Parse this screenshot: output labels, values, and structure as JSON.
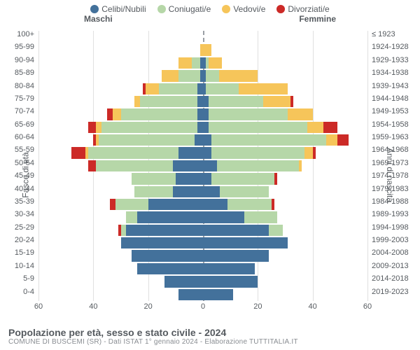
{
  "legend": [
    {
      "label": "Celibi/Nubili",
      "color": "#43719b"
    },
    {
      "label": "Coniugati/e",
      "color": "#b6d7a8"
    },
    {
      "label": "Vedovi/e",
      "color": "#f6c55a"
    },
    {
      "label": "Divorziati/e",
      "color": "#cc2a27"
    }
  ],
  "colors": {
    "celibi": "#43719b",
    "coniugati": "#b6d7a8",
    "vedovi": "#f6c55a",
    "divorziati": "#cc2a27",
    "grid": "#e0e0e0",
    "center": "#9a9fa5",
    "text": "#555a5f",
    "subtext": "#888c91",
    "background": "#ffffff"
  },
  "titles": {
    "maschi": "Maschi",
    "femmine": "Femmine",
    "y_left": "Fasce di età",
    "y_right": "Anni di nascita"
  },
  "axis": {
    "xlim": 60,
    "ticks": [
      60,
      40,
      20,
      0,
      20,
      40,
      60
    ],
    "label_fontsize": 11
  },
  "fontsize": {
    "legend": 12,
    "titles": 12,
    "axis_labels": 11,
    "row_labels": 11,
    "footer_title": 14,
    "footer_sub": 10
  },
  "rows": [
    {
      "age": "100+",
      "birth": "≤ 1923",
      "male": {
        "celibi": 0,
        "coniugati": 0,
        "vedovi": 0,
        "divorziati": 0
      },
      "female": {
        "celibi": 0,
        "coniugati": 0,
        "vedovi": 0,
        "divorziati": 0
      }
    },
    {
      "age": "95-99",
      "birth": "1924-1928",
      "male": {
        "celibi": 0,
        "coniugati": 0,
        "vedovi": 1,
        "divorziati": 0
      },
      "female": {
        "celibi": 0,
        "coniugati": 0,
        "vedovi": 3,
        "divorziati": 0
      }
    },
    {
      "age": "90-94",
      "birth": "1929-1933",
      "male": {
        "celibi": 1,
        "coniugati": 3,
        "vedovi": 5,
        "divorziati": 0
      },
      "female": {
        "celibi": 1,
        "coniugati": 1,
        "vedovi": 5,
        "divorziati": 0
      }
    },
    {
      "age": "85-89",
      "birth": "1934-1938",
      "male": {
        "celibi": 1,
        "coniugati": 8,
        "vedovi": 6,
        "divorziati": 0
      },
      "female": {
        "celibi": 1,
        "coniugati": 5,
        "vedovi": 14,
        "divorziati": 0
      }
    },
    {
      "age": "80-84",
      "birth": "1939-1943",
      "male": {
        "celibi": 2,
        "coniugati": 14,
        "vedovi": 5,
        "divorziati": 1
      },
      "female": {
        "celibi": 1,
        "coniugati": 12,
        "vedovi": 18,
        "divorziati": 0
      }
    },
    {
      "age": "75-79",
      "birth": "1944-1948",
      "male": {
        "celibi": 2,
        "coniugati": 21,
        "vedovi": 2,
        "divorziati": 0
      },
      "female": {
        "celibi": 2,
        "coniugati": 20,
        "vedovi": 10,
        "divorziati": 1
      }
    },
    {
      "age": "70-74",
      "birth": "1949-1953",
      "male": {
        "celibi": 2,
        "coniugati": 28,
        "vedovi": 3,
        "divorziati": 2
      },
      "female": {
        "celibi": 2,
        "coniugati": 29,
        "vedovi": 9,
        "divorziati": 0
      }
    },
    {
      "age": "65-69",
      "birth": "1954-1958",
      "male": {
        "celibi": 2,
        "coniugati": 35,
        "vedovi": 2,
        "divorziati": 3
      },
      "female": {
        "celibi": 2,
        "coniugati": 36,
        "vedovi": 6,
        "divorziati": 5
      }
    },
    {
      "age": "60-64",
      "birth": "1959-1963",
      "male": {
        "celibi": 3,
        "coniugati": 35,
        "vedovi": 1,
        "divorziati": 1
      },
      "female": {
        "celibi": 3,
        "coniugati": 42,
        "vedovi": 4,
        "divorziati": 4
      }
    },
    {
      "age": "55-59",
      "birth": "1964-1968",
      "male": {
        "celibi": 9,
        "coniugati": 33,
        "vedovi": 1,
        "divorziati": 5
      },
      "female": {
        "celibi": 3,
        "coniugati": 34,
        "vedovi": 3,
        "divorziati": 1
      }
    },
    {
      "age": "50-54",
      "birth": "1969-1973",
      "male": {
        "celibi": 11,
        "coniugati": 28,
        "vedovi": 0,
        "divorziati": 3
      },
      "female": {
        "celibi": 5,
        "coniugati": 30,
        "vedovi": 1,
        "divorziati": 0
      }
    },
    {
      "age": "45-49",
      "birth": "1974-1978",
      "male": {
        "celibi": 10,
        "coniugati": 16,
        "vedovi": 0,
        "divorziati": 0
      },
      "female": {
        "celibi": 3,
        "coniugati": 23,
        "vedovi": 0,
        "divorziati": 1
      }
    },
    {
      "age": "40-44",
      "birth": "1979-1983",
      "male": {
        "celibi": 11,
        "coniugati": 14,
        "vedovi": 0,
        "divorziati": 0
      },
      "female": {
        "celibi": 6,
        "coniugati": 18,
        "vedovi": 0,
        "divorziati": 0
      }
    },
    {
      "age": "35-39",
      "birth": "1984-1988",
      "male": {
        "celibi": 20,
        "coniugati": 12,
        "vedovi": 0,
        "divorziati": 2
      },
      "female": {
        "celibi": 9,
        "coniugati": 16,
        "vedovi": 0,
        "divorziati": 1
      }
    },
    {
      "age": "30-34",
      "birth": "1989-1993",
      "male": {
        "celibi": 24,
        "coniugati": 4,
        "vedovi": 0,
        "divorziati": 0
      },
      "female": {
        "celibi": 15,
        "coniugati": 12,
        "vedovi": 0,
        "divorziati": 0
      }
    },
    {
      "age": "25-29",
      "birth": "1994-1998",
      "male": {
        "celibi": 28,
        "coniugati": 2,
        "vedovi": 0,
        "divorziati": 1
      },
      "female": {
        "celibi": 24,
        "coniugati": 5,
        "vedovi": 0,
        "divorziati": 0
      }
    },
    {
      "age": "20-24",
      "birth": "1999-2003",
      "male": {
        "celibi": 30,
        "coniugati": 0,
        "vedovi": 0,
        "divorziati": 0
      },
      "female": {
        "celibi": 31,
        "coniugati": 0,
        "vedovi": 0,
        "divorziati": 0
      }
    },
    {
      "age": "15-19",
      "birth": "2004-2008",
      "male": {
        "celibi": 26,
        "coniugati": 0,
        "vedovi": 0,
        "divorziati": 0
      },
      "female": {
        "celibi": 24,
        "coniugati": 0,
        "vedovi": 0,
        "divorziati": 0
      }
    },
    {
      "age": "10-14",
      "birth": "2009-2013",
      "male": {
        "celibi": 24,
        "coniugati": 0,
        "vedovi": 0,
        "divorziati": 0
      },
      "female": {
        "celibi": 19,
        "coniugati": 0,
        "vedovi": 0,
        "divorziati": 0
      }
    },
    {
      "age": "5-9",
      "birth": "2014-2018",
      "male": {
        "celibi": 14,
        "coniugati": 0,
        "vedovi": 0,
        "divorziati": 0
      },
      "female": {
        "celibi": 20,
        "coniugati": 0,
        "vedovi": 0,
        "divorziati": 0
      }
    },
    {
      "age": "0-4",
      "birth": "2019-2023",
      "male": {
        "celibi": 9,
        "coniugati": 0,
        "vedovi": 0,
        "divorziati": 0
      },
      "female": {
        "celibi": 11,
        "coniugati": 0,
        "vedovi": 0,
        "divorziati": 0
      }
    }
  ],
  "footer": {
    "title": "Popolazione per età, sesso e stato civile - 2024",
    "sub": "COMUNE DI BUSCEMI (SR) - Dati ISTAT 1° gennaio 2024 - Elaborazione TUTTITALIA.IT"
  }
}
